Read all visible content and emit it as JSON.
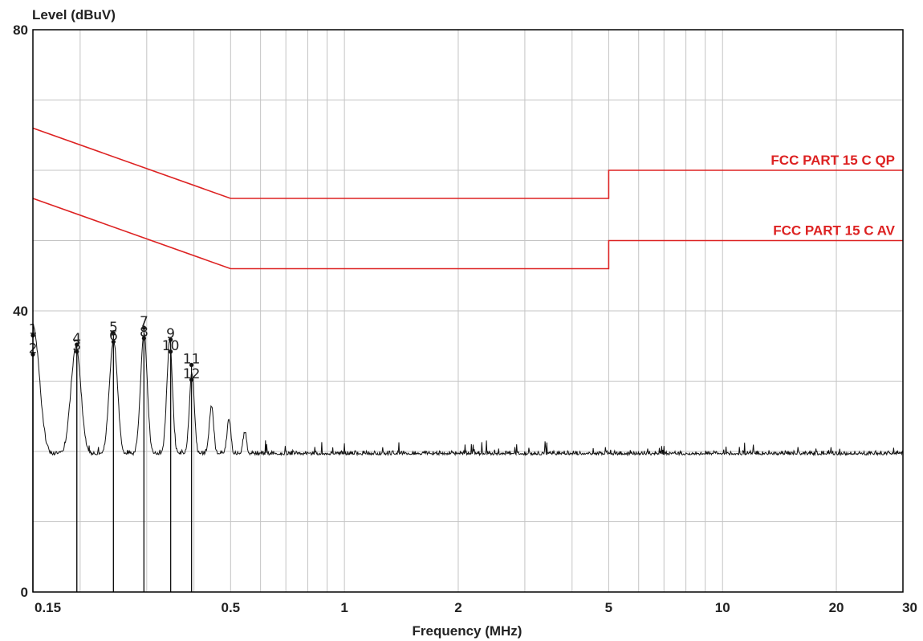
{
  "chart_data": {
    "type": "line",
    "ylabel": "Level (dBuV)",
    "xlabel": "Frequency (MHz)",
    "xscale": "log",
    "xlim": [
      0.15,
      30
    ],
    "ylim": [
      0,
      80
    ],
    "grid": true,
    "x_tick_labels": [
      {
        "value": 0.15,
        "label": "0.15"
      },
      {
        "value": 0.5,
        "label": "0.5"
      },
      {
        "value": 1,
        "label": "1"
      },
      {
        "value": 2,
        "label": "2"
      },
      {
        "value": 5,
        "label": "5"
      },
      {
        "value": 10,
        "label": "10"
      },
      {
        "value": 20,
        "label": "20"
      },
      {
        "value": 30,
        "label": "30"
      }
    ],
    "x_grid_values": [
      0.2,
      0.3,
      0.4,
      0.5,
      0.6,
      0.7,
      0.8,
      0.9,
      1,
      2,
      3,
      4,
      5,
      6,
      7,
      8,
      9,
      10,
      20,
      30
    ],
    "y_tick_labels": [
      {
        "value": 0,
        "label": "0"
      },
      {
        "value": 40,
        "label": "40"
      },
      {
        "value": 80,
        "label": "80"
      }
    ],
    "y_grid_values": [
      10,
      20,
      30,
      40,
      50,
      60,
      70
    ],
    "limit_lines": [
      {
        "name": "FCC PART 15 C QP",
        "color": "#dd2222",
        "points": [
          [
            0.15,
            66
          ],
          [
            0.5,
            56
          ],
          [
            5,
            56
          ],
          [
            5,
            60
          ],
          [
            30,
            60
          ]
        ]
      },
      {
        "name": "FCC PART 15 C AV",
        "color": "#dd2222",
        "points": [
          [
            0.15,
            56
          ],
          [
            0.5,
            46
          ],
          [
            5,
            46
          ],
          [
            5,
            50
          ],
          [
            30,
            50
          ]
        ]
      }
    ],
    "trace": {
      "color": "#111111",
      "floor_level": 19.5,
      "noise_amplitude": 0.6,
      "peaks": [
        {
          "freq": 0.15,
          "level": 38.0
        },
        {
          "freq": 0.195,
          "level": 35.0
        },
        {
          "freq": 0.245,
          "level": 35.9
        },
        {
          "freq": 0.295,
          "level": 36.8
        },
        {
          "freq": 0.345,
          "level": 35.6
        },
        {
          "freq": 0.395,
          "level": 31.3
        },
        {
          "freq": 0.445,
          "level": 26.5
        },
        {
          "freq": 0.495,
          "level": 24.7
        },
        {
          "freq": 0.545,
          "level": 22.9
        }
      ]
    },
    "markers": [
      {
        "id": "1",
        "freq": 0.15,
        "level": 36.5,
        "label_x_offset": 0
      },
      {
        "id": "2",
        "freq": 0.15,
        "level": 33.8,
        "label_x_offset": 0
      },
      {
        "id": "3",
        "freq": 0.196,
        "level": 34.2,
        "label_x_offset": 0
      },
      {
        "id": "4",
        "freq": 0.196,
        "level": 35.2,
        "label_x_offset": 0
      },
      {
        "id": "5",
        "freq": 0.245,
        "level": 36.8,
        "label_x_offset": 0
      },
      {
        "id": "6",
        "freq": 0.245,
        "level": 35.6,
        "label_x_offset": 0
      },
      {
        "id": "7",
        "freq": 0.295,
        "level": 37.6,
        "label_x_offset": 0
      },
      {
        "id": "8",
        "freq": 0.295,
        "level": 36.1,
        "label_x_offset": 0
      },
      {
        "id": "9",
        "freq": 0.347,
        "level": 35.9,
        "label_x_offset": 0
      },
      {
        "id": "10",
        "freq": 0.347,
        "level": 34.2,
        "label_x_offset": 0
      },
      {
        "id": "11",
        "freq": 0.394,
        "level": 32.3,
        "label_x_offset": 0
      },
      {
        "id": "12",
        "freq": 0.394,
        "level": 30.2,
        "label_x_offset": 0
      }
    ]
  }
}
